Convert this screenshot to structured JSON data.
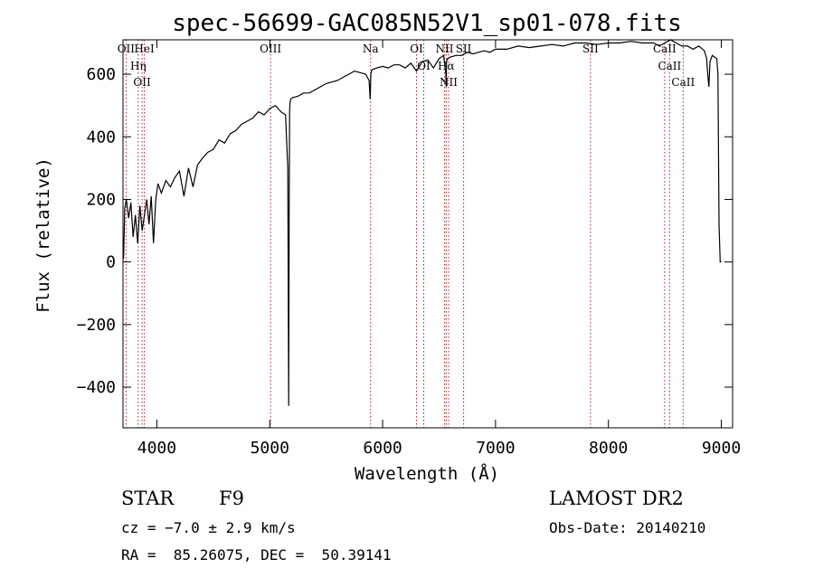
{
  "chart_data": {
    "type": "line",
    "title": "spec-56699-GAC085N52V1_sp01-078.fits",
    "xlabel": "Wavelength (Å)",
    "ylabel": "Flux (relative)",
    "xlim": [
      3700,
      9100
    ],
    "ylim": [
      -530,
      710
    ],
    "xticks": [
      4000,
      5000,
      6000,
      7000,
      8000,
      9000
    ],
    "yticks": [
      -400,
      -200,
      0,
      200,
      400,
      600
    ],
    "grid": false,
    "line_color": "#000000",
    "marker_color": "#b22222",
    "series_x": [
      3705,
      3715,
      3730,
      3750,
      3770,
      3790,
      3810,
      3830,
      3850,
      3870,
      3890,
      3910,
      3930,
      3950,
      3970,
      3990,
      4010,
      4040,
      4080,
      4120,
      4160,
      4200,
      4240,
      4280,
      4320,
      4360,
      4400,
      4450,
      4500,
      4550,
      4600,
      4650,
      4700,
      4750,
      4800,
      4850,
      4900,
      4950,
      5000,
      5050,
      5100,
      5140,
      5160,
      5168,
      5172,
      5176,
      5180,
      5185,
      5200,
      5250,
      5300,
      5350,
      5400,
      5450,
      5500,
      5550,
      5600,
      5650,
      5700,
      5750,
      5800,
      5850,
      5880,
      5890,
      5895,
      5900,
      5910,
      5950,
      6000,
      6050,
      6100,
      6150,
      6200,
      6250,
      6300,
      6350,
      6400,
      6450,
      6500,
      6540,
      6560,
      6563,
      6566,
      6575,
      6600,
      6650,
      6700,
      6750,
      6800,
      6850,
      6900,
      6950,
      7000,
      7100,
      7200,
      7300,
      7400,
      7500,
      7600,
      7700,
      7800,
      7900,
      8000,
      8100,
      8200,
      8300,
      8400,
      8450,
      8500,
      8550,
      8600,
      8650,
      8700,
      8750,
      8800,
      8850,
      8870,
      8880,
      8890,
      8900,
      8920,
      8940,
      8960,
      8970,
      8980,
      8990,
      9000
    ],
    "series_y": [
      10,
      170,
      200,
      140,
      190,
      80,
      150,
      60,
      180,
      100,
      150,
      200,
      120,
      210,
      60,
      200,
      250,
      220,
      260,
      240,
      270,
      290,
      210,
      300,
      240,
      310,
      330,
      350,
      360,
      390,
      380,
      410,
      420,
      440,
      450,
      460,
      480,
      470,
      490,
      500,
      480,
      470,
      300,
      -460,
      150,
      480,
      510,
      520,
      525,
      530,
      540,
      540,
      550,
      560,
      570,
      575,
      580,
      590,
      600,
      610,
      605,
      600,
      580,
      520,
      600,
      610,
      615,
      620,
      625,
      620,
      630,
      630,
      620,
      635,
      610,
      640,
      645,
      620,
      650,
      660,
      600,
      560,
      640,
      650,
      655,
      660,
      660,
      670,
      665,
      670,
      675,
      670,
      680,
      680,
      690,
      685,
      690,
      695,
      690,
      700,
      700,
      695,
      700,
      700,
      705,
      700,
      700,
      690,
      700,
      710,
      700,
      690,
      690,
      680,
      690,
      675,
      650,
      600,
      560,
      640,
      660,
      655,
      650,
      600,
      120,
      0,
      0
    ],
    "line_markers": [
      {
        "x": 3727,
        "label": "OII"
      },
      {
        "x": 3835,
        "label": "Hη"
      },
      {
        "x": 3869,
        "label": "OII"
      },
      {
        "x": 3889,
        "label": "HeI"
      },
      {
        "x": 5007,
        "label": "OIII"
      },
      {
        "x": 5893,
        "label": "Na"
      },
      {
        "x": 6300,
        "label": "OI"
      },
      {
        "x": 6364,
        "label": "OI"
      },
      {
        "x": 6548,
        "label": "NII"
      },
      {
        "x": 6563,
        "label": "Hα"
      },
      {
        "x": 6584,
        "label": "NII"
      },
      {
        "x": 6717,
        "label": "SII"
      },
      {
        "x": 7841,
        "label": "SII"
      },
      {
        "x": 8498,
        "label": "CaII"
      },
      {
        "x": 8542,
        "label": "CaII"
      },
      {
        "x": 8662,
        "label": "CaII"
      }
    ]
  },
  "info": {
    "object_class": "STAR",
    "subclass": "F9",
    "survey": "LAMOST DR2",
    "redshift": "cz = −7.0 ± 2.9 km/s",
    "obs_date": "Obs-Date: 20140210",
    "coords": "RA =  85.26075, DEC =  50.39141"
  }
}
